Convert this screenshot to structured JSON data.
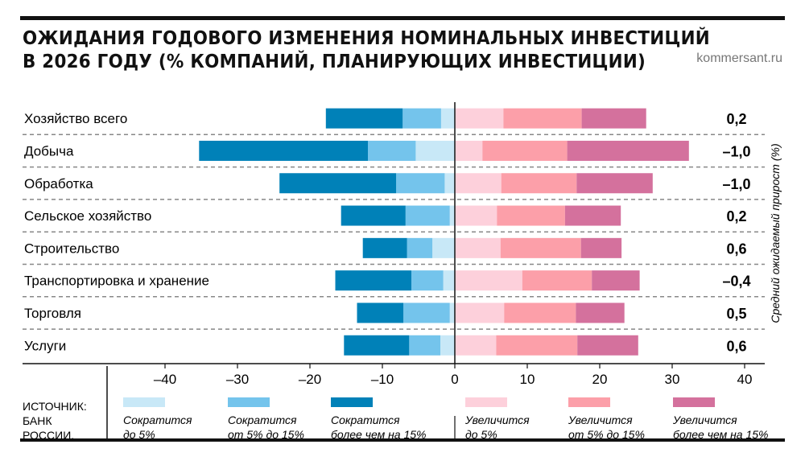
{
  "header": {
    "title_line1": "ОЖИДАНИЯ ГОДОВОГО ИЗМЕНЕНИЯ НОМИНАЛЬНЫХ ИНВЕСТИЦИЙ",
    "title_line2": "В 2026 ГОДУ (% КОМПАНИЙ, ПЛАНИРУЮЩИХ ИНВЕСТИЦИИ)",
    "site": "kommersant.ru"
  },
  "source": {
    "line1": "ИСТОЧНИК:",
    "line2": "БАНК",
    "line3": "РОССИИ."
  },
  "chart_data": {
    "type": "bar",
    "orientation": "horizontal-diverging-stacked",
    "categories": [
      "Хозяйство всего",
      "Добыча",
      "Обработка",
      "Сельское хозяйство",
      "Строительство",
      "Транспортировка и хранение",
      "Торговля",
      "Услуги"
    ],
    "series": [
      {
        "name": "Сократится до 5%",
        "side": "negative",
        "color": "#c8e8f7",
        "values": [
          1.9,
          5.4,
          1.4,
          0.7,
          3.1,
          1.6,
          0.7,
          2.0
        ]
      },
      {
        "name": "Сократится от 5% до 15%",
        "side": "negative",
        "color": "#74c4ec",
        "values": [
          5.3,
          6.6,
          6.7,
          6.1,
          3.5,
          4.4,
          6.4,
          4.3
        ]
      },
      {
        "name": "Сократится более чем на 15%",
        "side": "negative",
        "color": "#0081b8",
        "values": [
          10.6,
          23.3,
          16.1,
          8.9,
          6.1,
          10.5,
          6.4,
          9.0
        ]
      },
      {
        "name": "Увеличится до 5%",
        "side": "positive",
        "color": "#fdd0db",
        "values": [
          6.6,
          3.7,
          6.3,
          5.7,
          6.2,
          9.2,
          6.7,
          5.6
        ]
      },
      {
        "name": "Увеличится от 5% до 15%",
        "side": "positive",
        "color": "#fc9fa9",
        "values": [
          10.8,
          11.7,
          10.4,
          9.4,
          11.1,
          9.6,
          9.9,
          11.2
        ]
      },
      {
        "name": "Увеличится более чем на 15%",
        "side": "positive",
        "color": "#d4719d",
        "values": [
          8.9,
          16.8,
          10.5,
          7.7,
          5.6,
          6.6,
          6.7,
          8.4
        ]
      }
    ],
    "legend_lines": [
      [
        "Сократится",
        "до 5%"
      ],
      [
        "Сократится",
        "от 5% до 15%"
      ],
      [
        "Сократится",
        "более чем на 15%"
      ],
      [
        "Увеличится",
        "до 5%"
      ],
      [
        "Увеличится",
        "от 5% до 15%"
      ],
      [
        "Увеличится",
        "более чем на 15%"
      ]
    ],
    "average_growth": [
      "0,2",
      "–1,0",
      "–1,0",
      "0,2",
      "0,6",
      "–0,4",
      "0,5",
      "0,6"
    ],
    "average_growth_label": "Средний ожидаемый прирост (%)",
    "xlim": [
      -40,
      40
    ],
    "xticks": [
      -40,
      -30,
      -20,
      -10,
      0,
      10,
      20,
      30,
      40
    ],
    "xtick_labels": [
      "–40",
      "–30",
      "–20",
      "–10",
      "0",
      "10",
      "20",
      "30",
      "40"
    ],
    "grid": "dashed row separators",
    "legend": "bottom"
  }
}
